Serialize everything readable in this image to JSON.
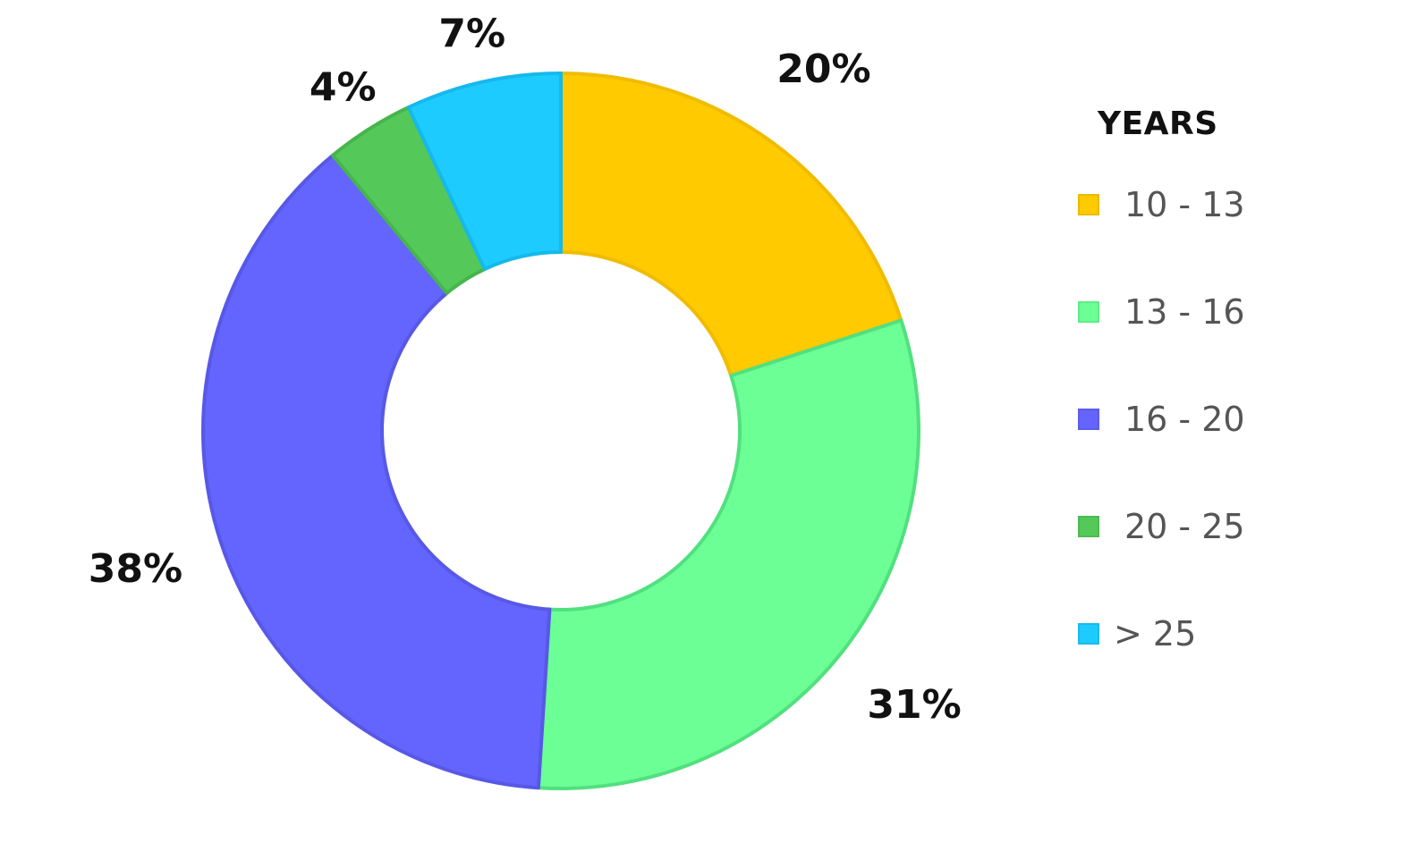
{
  "chart_data": {
    "type": "pie",
    "variant": "donut",
    "legend_title": "YEARS",
    "legend_position": "right",
    "start_angle_deg": 0,
    "direction": "clockwise",
    "slices": [
      {
        "label": "10 - 13",
        "value": 20,
        "display": "20%",
        "color": "#FFCA00",
        "stroke": "#F0BC00"
      },
      {
        "label": "13 - 16",
        "value": 31,
        "display": "31%",
        "color": "#6BFF96",
        "stroke": "#52E07F"
      },
      {
        "label": "16 - 20",
        "value": 38,
        "display": "38%",
        "color": "#6464FF",
        "stroke": "#5858E6"
      },
      {
        "label": "20 - 25",
        "value": 4,
        "display": "4%",
        "color": "#54C95A",
        "stroke": "#46B54C"
      },
      {
        "label": "> 25",
        "value": 7,
        "display": "7%",
        "color": "#1ECBFF",
        "stroke": "#15B9EB"
      }
    ]
  }
}
